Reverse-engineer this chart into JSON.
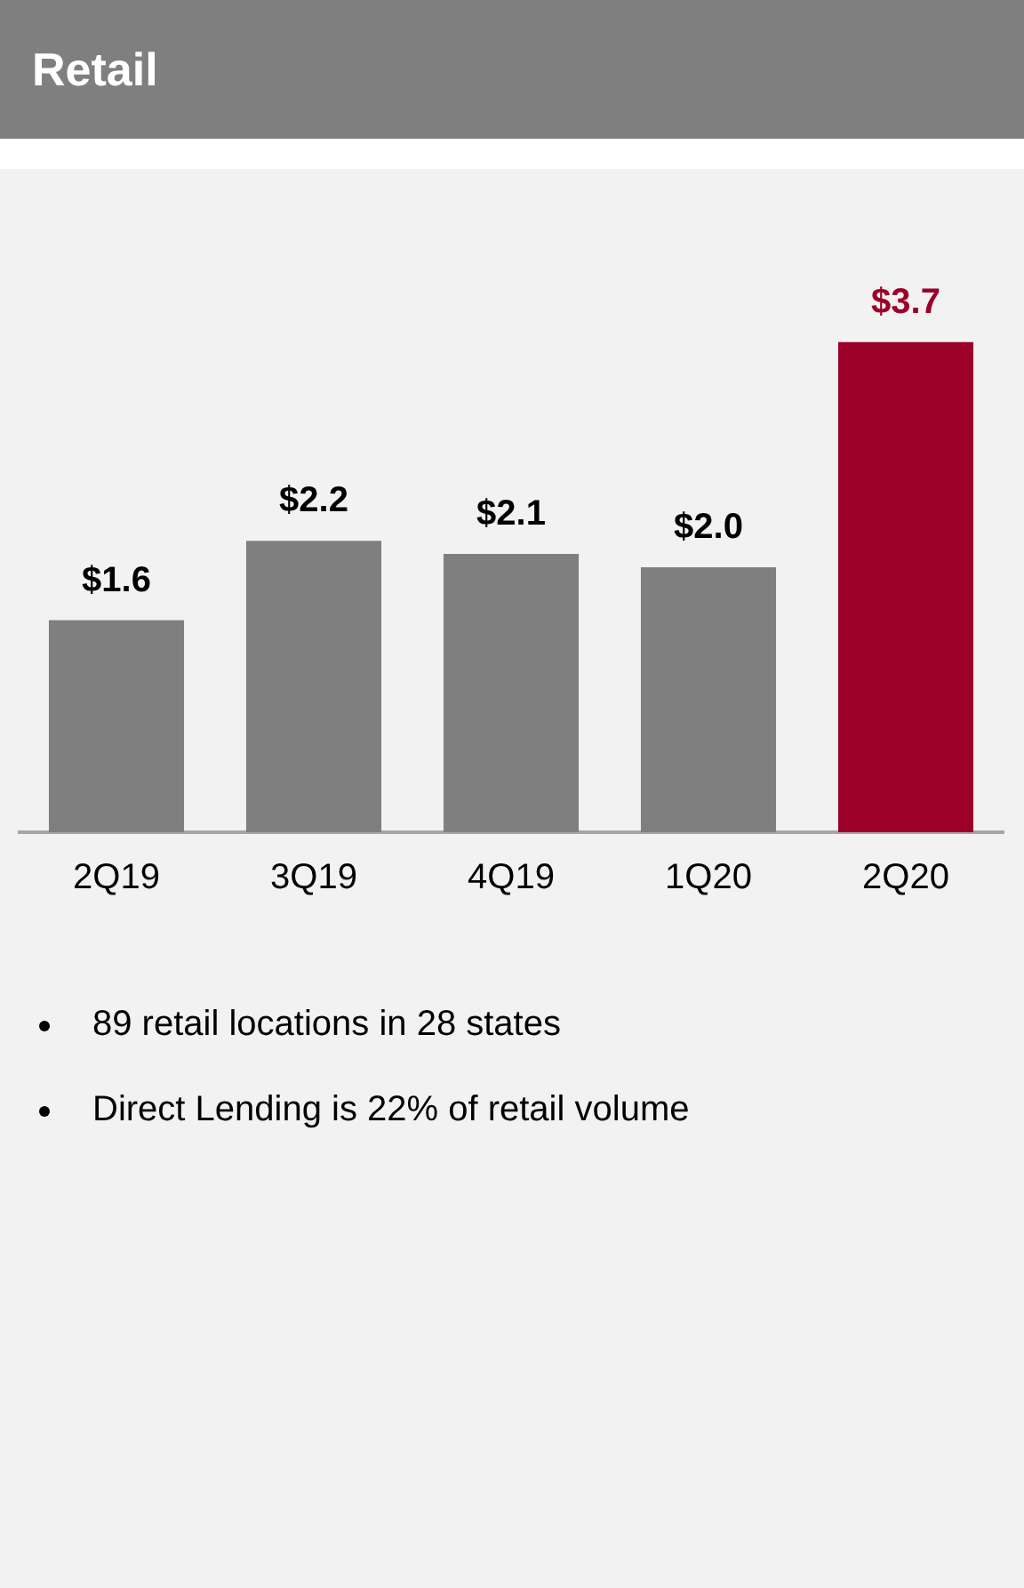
{
  "chart_data": {
    "type": "bar",
    "title": "Retail",
    "categories": [
      "2Q19",
      "3Q19",
      "4Q19",
      "1Q20",
      "2Q20"
    ],
    "values": [
      1.6,
      2.2,
      2.1,
      2.0,
      3.7
    ],
    "colors": [
      "#7f7f7f",
      "#7f7f7f",
      "#7f7f7f",
      "#7f7f7f",
      "#9b0029"
    ],
    "value_labels": [
      "$1.6",
      "$2.2",
      "$2.1",
      "$2.0",
      "$3.7"
    ],
    "grid": false,
    "legend": false,
    "annotations": [
      "89 retail locations in 28 states",
      "Direct Lending is 22% of retail volume"
    ]
  }
}
